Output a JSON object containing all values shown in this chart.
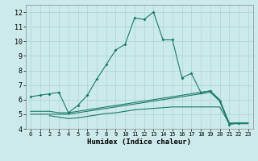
{
  "xlabel": "Humidex (Indice chaleur)",
  "bg_color": "#cceaea",
  "grid_color": "#aad4d4",
  "line_color": "#1a7a6a",
  "xlim": [
    -0.5,
    23.5
  ],
  "ylim": [
    4,
    12.5
  ],
  "xticks": [
    0,
    1,
    2,
    3,
    4,
    5,
    6,
    7,
    8,
    9,
    10,
    11,
    12,
    13,
    14,
    15,
    16,
    17,
    18,
    19,
    20,
    21,
    22,
    23
  ],
  "yticks": [
    4,
    5,
    6,
    7,
    8,
    9,
    10,
    11,
    12
  ],
  "series": [
    {
      "x": [
        0,
        1,
        2,
        3,
        4,
        5,
        6,
        7,
        8,
        9,
        10,
        11,
        12,
        13,
        14,
        15,
        16,
        17,
        18,
        19,
        20,
        21,
        22
      ],
      "y": [
        6.2,
        6.3,
        6.4,
        6.5,
        5.1,
        5.6,
        6.3,
        7.4,
        8.4,
        9.4,
        9.8,
        11.6,
        11.5,
        12.0,
        10.1,
        10.1,
        7.5,
        7.8,
        6.5,
        6.6,
        5.9,
        4.3,
        4.4
      ],
      "marker": true
    },
    {
      "x": [
        2,
        3,
        4,
        5,
        6,
        7,
        8,
        9,
        10,
        11,
        12,
        13,
        14,
        15,
        16,
        17,
        18,
        19,
        20,
        21,
        22,
        23
      ],
      "y": [
        4.9,
        4.8,
        4.7,
        4.75,
        4.85,
        4.95,
        5.05,
        5.1,
        5.2,
        5.3,
        5.35,
        5.4,
        5.45,
        5.5,
        5.5,
        5.5,
        5.5,
        5.5,
        5.5,
        4.35,
        4.35,
        4.35
      ],
      "marker": false
    },
    {
      "x": [
        0,
        1,
        2,
        3,
        4,
        5,
        6,
        7,
        8,
        9,
        10,
        11,
        12,
        13,
        14,
        15,
        16,
        17,
        18,
        19,
        20,
        21,
        22,
        23
      ],
      "y": [
        5.0,
        5.0,
        5.0,
        5.0,
        5.0,
        5.1,
        5.2,
        5.3,
        5.4,
        5.5,
        5.6,
        5.7,
        5.8,
        5.9,
        6.0,
        6.1,
        6.2,
        6.3,
        6.4,
        6.5,
        5.9,
        4.35,
        4.4,
        4.4
      ],
      "marker": false
    },
    {
      "x": [
        0,
        1,
        2,
        3,
        4,
        5,
        6,
        7,
        8,
        9,
        10,
        11,
        12,
        13,
        14,
        15,
        16,
        17,
        18,
        19,
        20,
        21,
        22,
        23
      ],
      "y": [
        5.2,
        5.2,
        5.2,
        5.1,
        5.1,
        5.2,
        5.3,
        5.4,
        5.5,
        5.6,
        5.7,
        5.8,
        5.9,
        6.0,
        6.1,
        6.2,
        6.3,
        6.4,
        6.5,
        6.6,
        6.0,
        4.4,
        4.4,
        4.4
      ],
      "marker": false
    }
  ]
}
